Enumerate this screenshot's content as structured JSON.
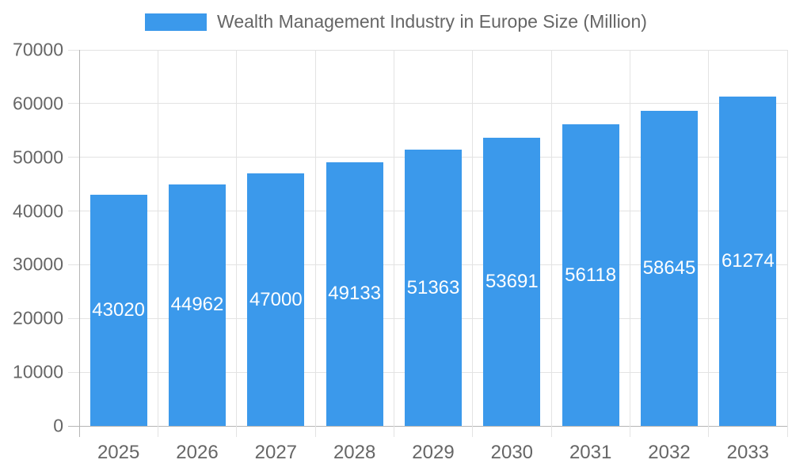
{
  "chart_data": {
    "type": "bar",
    "title": "Wealth Management Industry in Europe Size (Million)",
    "categories": [
      "2025",
      "2026",
      "2027",
      "2028",
      "2029",
      "2030",
      "2031",
      "2032",
      "2033"
    ],
    "values": [
      43020,
      44962,
      47000,
      49133,
      51363,
      53691,
      56118,
      58645,
      61274
    ],
    "xlabel": "",
    "ylabel": "",
    "ylim": [
      0,
      70000
    ],
    "ytick_step": 10000,
    "yticks": [
      0,
      10000,
      20000,
      30000,
      40000,
      50000,
      60000,
      70000
    ],
    "grid": true,
    "legend_position": "top",
    "value_label_position": "inside-center",
    "colors": {
      "bar": "#3b99eb",
      "grid": "#e3e3e3",
      "axis_line": "#b5b5b5",
      "tick_text": "#666666",
      "value_label_text": "#ffffff",
      "background": "#ffffff"
    }
  }
}
